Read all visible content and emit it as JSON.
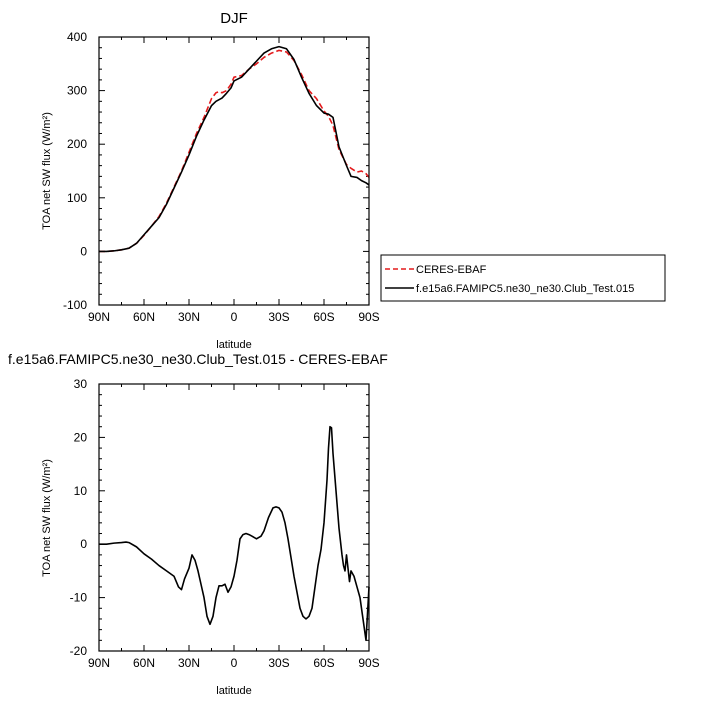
{
  "chart_data": [
    {
      "type": "line",
      "title": "DJF",
      "xlabel": "latitude",
      "ylabel": "TOA net SW flux (W/m²)",
      "xlim": [
        -90,
        90
      ],
      "ylim": [
        -100,
        400
      ],
      "xticks": [
        -90,
        -60,
        -30,
        0,
        30,
        60,
        90
      ],
      "xtick_labels": [
        "90N",
        "60N",
        "30N",
        "0",
        "30S",
        "60S",
        "90S"
      ],
      "yticks": [
        -100,
        0,
        100,
        200,
        300,
        400
      ],
      "legend_position": "right",
      "series": [
        {
          "name": "CERES-EBAF",
          "color": "#e41a1c",
          "dash": "dashed",
          "x": [
            -90,
            -85,
            -80,
            -75,
            -70,
            -65,
            -60,
            -55,
            -50,
            -45,
            -40,
            -35,
            -30,
            -25,
            -20,
            -15,
            -12,
            -10,
            -8,
            -5,
            -2,
            0,
            5,
            10,
            15,
            20,
            25,
            30,
            35,
            40,
            45,
            50,
            55,
            60,
            63,
            66,
            70,
            75,
            78,
            82,
            85,
            88,
            90
          ],
          "y": [
            0,
            0,
            1,
            3,
            6,
            15,
            30,
            47,
            65,
            90,
            120,
            150,
            185,
            220,
            250,
            285,
            296,
            298,
            296,
            300,
            312,
            325,
            328,
            340,
            350,
            362,
            370,
            375,
            372,
            356,
            330,
            300,
            285,
            262,
            252,
            235,
            190,
            162,
            155,
            148,
            150,
            145,
            138
          ]
        },
        {
          "name": "f.e15a6.FAMIPC5.ne30_ne30.Club_Test.015",
          "color": "#000000",
          "dash": "solid",
          "x": [
            -90,
            -85,
            -80,
            -75,
            -70,
            -65,
            -60,
            -55,
            -50,
            -45,
            -40,
            -35,
            -30,
            -25,
            -20,
            -15,
            -12,
            -10,
            -8,
            -5,
            -2,
            0,
            5,
            10,
            15,
            20,
            25,
            30,
            35,
            40,
            45,
            50,
            55,
            60,
            63,
            66,
            70,
            75,
            78,
            82,
            85,
            88,
            90
          ],
          "y": [
            0,
            0,
            1,
            3,
            6,
            15,
            31,
            47,
            63,
            88,
            118,
            148,
            180,
            215,
            245,
            272,
            280,
            283,
            286,
            295,
            305,
            318,
            325,
            340,
            355,
            370,
            378,
            382,
            378,
            358,
            325,
            295,
            272,
            258,
            256,
            250,
            195,
            160,
            140,
            138,
            132,
            128,
            124
          ]
        }
      ]
    },
    {
      "type": "line",
      "title": "f.e15a6.FAMIPC5.ne30_ne30.Club_Test.015 - CERES-EBAF",
      "xlabel": "latitude",
      "ylabel": "TOA net SW flux (W/m²)",
      "xlim": [
        -90,
        90
      ],
      "ylim": [
        -20,
        30
      ],
      "xticks": [
        -90,
        -60,
        -30,
        0,
        30,
        60,
        90
      ],
      "xtick_labels": [
        "90N",
        "60N",
        "30N",
        "0",
        "30S",
        "60S",
        "90S"
      ],
      "yticks": [
        -20,
        -10,
        0,
        10,
        20,
        30
      ],
      "series": [
        {
          "color": "#000000",
          "dash": "solid",
          "x": [
            -90,
            -85,
            -80,
            -75,
            -72,
            -70,
            -65,
            -60,
            -55,
            -50,
            -45,
            -40,
            -37,
            -35,
            -33,
            -30,
            -28,
            -26,
            -24,
            -22,
            -20,
            -18,
            -16,
            -14,
            -12,
            -10,
            -8,
            -6,
            -4,
            -2,
            0,
            2,
            4,
            6,
            8,
            10,
            12,
            15,
            18,
            20,
            23,
            26,
            28,
            30,
            32,
            34,
            36,
            38,
            40,
            42,
            44,
            46,
            48,
            50,
            52,
            54,
            56,
            58,
            60,
            62,
            63,
            64,
            65,
            66,
            68,
            70,
            72,
            73,
            74,
            75,
            76,
            77,
            78,
            80,
            82,
            84,
            86,
            88,
            90
          ],
          "y": [
            0,
            0,
            0.2,
            0.3,
            0.4,
            0.3,
            -0.5,
            -1.8,
            -2.8,
            -4,
            -5,
            -6,
            -8,
            -8.5,
            -6.5,
            -4.5,
            -2,
            -3,
            -5,
            -7.5,
            -10,
            -13.5,
            -15,
            -13.5,
            -10,
            -7.8,
            -7.8,
            -7.5,
            -9,
            -8,
            -6,
            -3,
            1,
            1.8,
            2,
            1.8,
            1.5,
            1,
            1.5,
            2.5,
            5,
            6.8,
            7,
            6.8,
            6,
            4,
            1,
            -2.5,
            -6,
            -9,
            -12,
            -13.5,
            -14,
            -13.5,
            -12,
            -8,
            -4,
            -1,
            4,
            12,
            18,
            22,
            21.8,
            17,
            10,
            3,
            -2,
            -4,
            -5,
            -2,
            -4.5,
            -7,
            -5,
            -6,
            -8,
            -10,
            -14,
            -18,
            -8
          ]
        }
      ]
    }
  ]
}
